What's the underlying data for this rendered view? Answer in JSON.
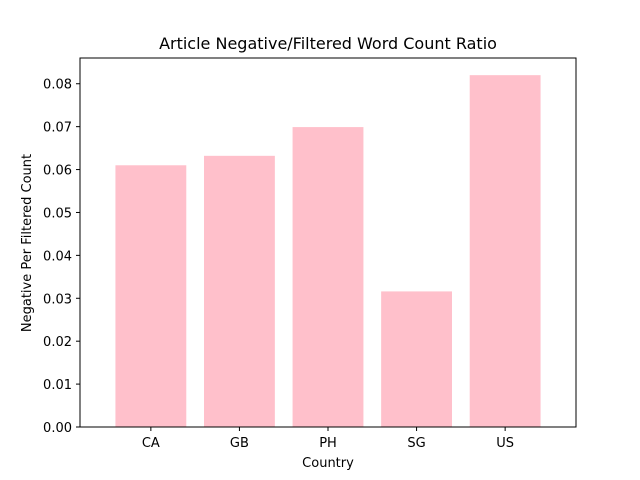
{
  "chart_data": {
    "type": "bar",
    "title": "Article Negative/Filtered Word Count Ratio",
    "xlabel": "Country",
    "ylabel": "Negative Per Filtered Count",
    "categories": [
      "CA",
      "GB",
      "PH",
      "SG",
      "US"
    ],
    "values": [
      0.061,
      0.0632,
      0.0699,
      0.0316,
      0.082
    ],
    "ylim": [
      0,
      0.086
    ],
    "yticks": [
      0.0,
      0.01,
      0.02,
      0.03,
      0.04,
      0.05,
      0.06,
      0.07,
      0.08
    ],
    "ytick_labels": [
      "0.00",
      "0.01",
      "0.02",
      "0.03",
      "0.04",
      "0.05",
      "0.06",
      "0.07",
      "0.08"
    ],
    "bar_color": "#ffc0cb",
    "grid": false,
    "legend": "none"
  }
}
